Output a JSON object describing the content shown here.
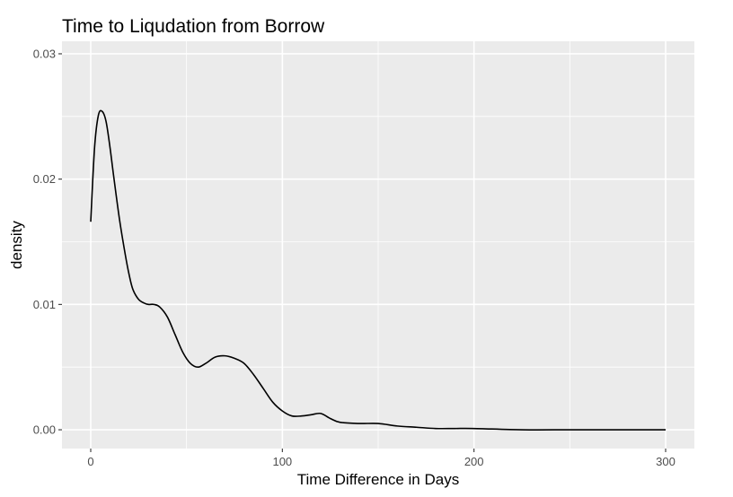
{
  "chart_data": {
    "type": "line",
    "title": "Time to Liqudation from Borrow",
    "xlabel": "Time Difference in Days",
    "ylabel": "density",
    "xlim": [
      -15,
      315
    ],
    "ylim": [
      -0.0015,
      0.031
    ],
    "x_ticks": [
      0,
      100,
      200,
      300
    ],
    "x_tick_labels": [
      "0",
      "100",
      "200",
      "300"
    ],
    "y_ticks": [
      0.0,
      0.01,
      0.02,
      0.03
    ],
    "y_tick_labels": [
      "0.00",
      "0.01",
      "0.02",
      "0.03"
    ],
    "grid": true,
    "colors": {
      "panel": "#ebebeb",
      "grid": "#ffffff",
      "line": "#000000"
    },
    "series": [
      {
        "x": [
          0,
          2,
          4,
          6,
          8,
          10,
          12,
          15,
          18,
          20,
          22,
          25,
          28,
          30,
          33,
          36,
          40,
          44,
          48,
          52,
          56,
          60,
          65,
          70,
          75,
          80,
          85,
          90,
          95,
          100,
          105,
          110,
          115,
          120,
          125,
          130,
          140,
          150,
          160,
          170,
          180,
          190,
          200,
          225,
          250,
          275,
          300
        ],
        "y": [
          0.0166,
          0.0225,
          0.0251,
          0.0254,
          0.0246,
          0.0226,
          0.0202,
          0.0168,
          0.014,
          0.0124,
          0.0112,
          0.0104,
          0.0101,
          0.01,
          0.01,
          0.0098,
          0.009,
          0.0076,
          0.0062,
          0.0053,
          0.005,
          0.0053,
          0.0058,
          0.0059,
          0.0057,
          0.0053,
          0.0044,
          0.0033,
          0.0022,
          0.0015,
          0.0011,
          0.0011,
          0.0012,
          0.0013,
          0.0009,
          0.0006,
          0.0005,
          0.0005,
          0.0003,
          0.0002,
          0.0001,
          0.0001,
          0.0001,
          0.0,
          0.0,
          0.0,
          0.0
        ]
      }
    ]
  }
}
